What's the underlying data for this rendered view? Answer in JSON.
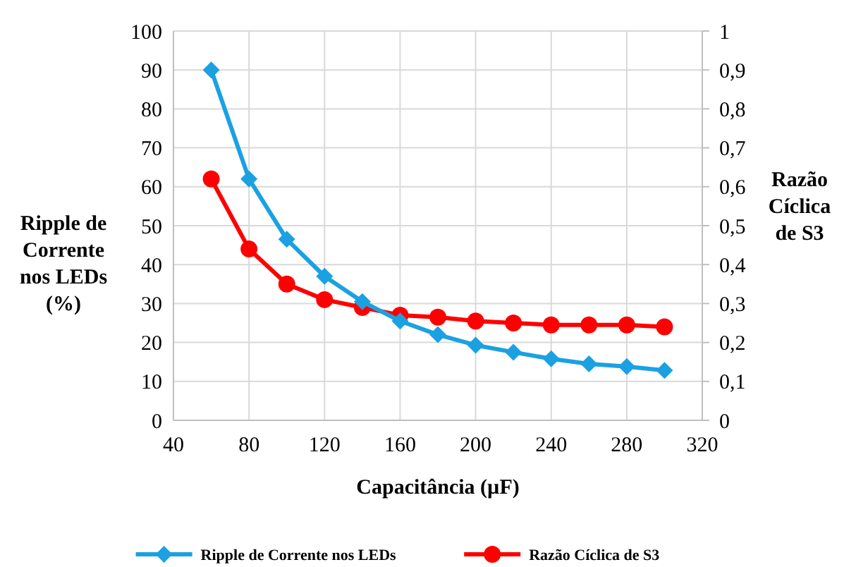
{
  "chart_data": {
    "type": "line",
    "xlabel": "Capacitância (µF)",
    "ylabel": "Ripple de Corrente nos LEDs (%)",
    "y2label": "Razão Cíclica de S3",
    "x": [
      60,
      80,
      100,
      120,
      140,
      160,
      180,
      200,
      220,
      240,
      260,
      280,
      300
    ],
    "series": [
      {
        "name": "Ripple de Corrente nos LEDs",
        "color": "#1ba1e2",
        "marker": "diamond",
        "values": [
          90,
          62,
          46.5,
          37,
          30.5,
          25.5,
          22,
          19.3,
          17.5,
          15.8,
          14.5,
          13.8,
          12.8
        ]
      },
      {
        "name": "Razão Cíclica de S3",
        "color": "#ff0000",
        "marker": "circle",
        "axis": "y2",
        "values": [
          0.62,
          0.44,
          0.35,
          0.31,
          0.29,
          0.27,
          0.265,
          0.255,
          0.25,
          0.245,
          0.245,
          0.245,
          0.24
        ]
      }
    ],
    "xlim": [
      40,
      320
    ],
    "xticks": [
      40,
      80,
      120,
      160,
      200,
      240,
      280,
      320
    ],
    "ylim": [
      0,
      100
    ],
    "yticks": [
      0,
      10,
      20,
      30,
      40,
      50,
      60,
      70,
      80,
      90,
      100
    ],
    "y2lim": [
      0,
      1
    ],
    "y2ticks": [
      0,
      {
        "value": 0.1,
        "label": "0,1"
      },
      {
        "value": 0.2,
        "label": "0,2"
      },
      {
        "value": 0.3,
        "label": "0,3"
      },
      {
        "value": 0.4,
        "label": "0,4"
      },
      {
        "value": 0.5,
        "label": "0,5"
      },
      {
        "value": 0.6,
        "label": "0,6"
      },
      {
        "value": 0.7,
        "label": "0,7"
      },
      {
        "value": 0.8,
        "label": "0,8"
      },
      {
        "value": 0.9,
        "label": "0,9"
      },
      1
    ],
    "grid": true,
    "legend": "bottom",
    "line_style": "solid"
  }
}
